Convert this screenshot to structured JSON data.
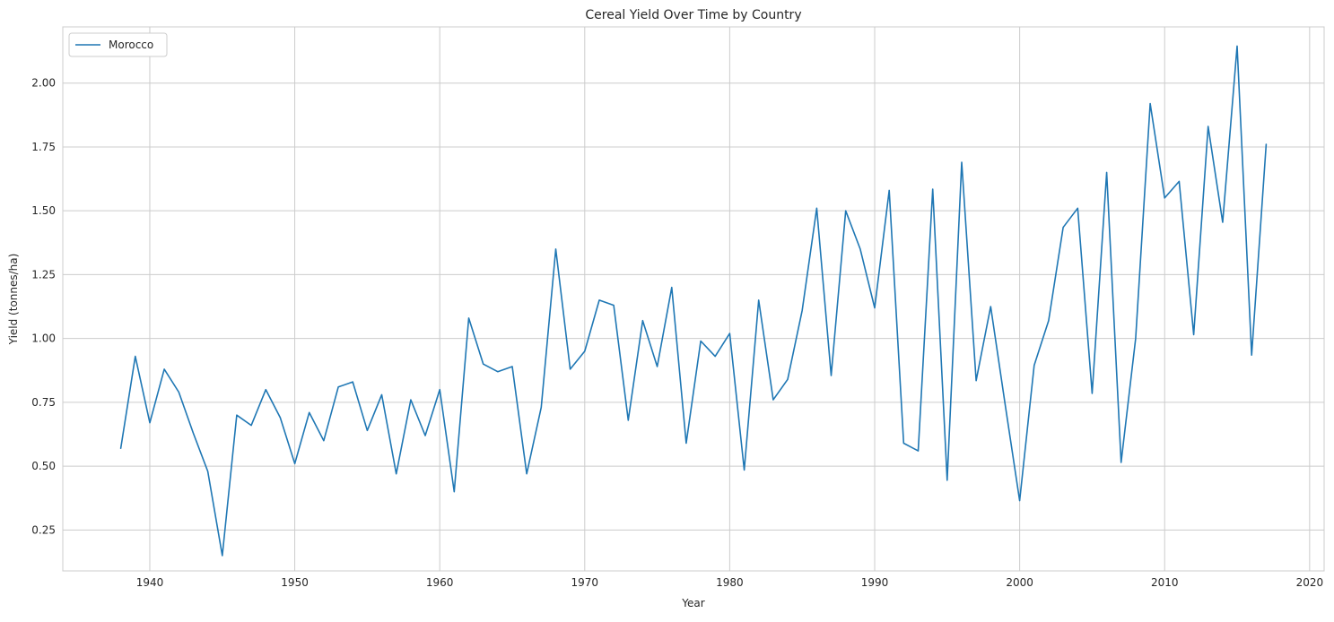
{
  "chart_data": {
    "type": "line",
    "title": "Cereal Yield Over Time by Country",
    "xlabel": "Year",
    "ylabel": "Yield (tonnes/ha)",
    "xlim": [
      1934,
      2021
    ],
    "ylim": [
      0.09,
      2.22
    ],
    "xticks": [
      1940,
      1950,
      1960,
      1970,
      1980,
      1990,
      2000,
      2010,
      2020
    ],
    "yticks": [
      0.25,
      0.5,
      0.75,
      1.0,
      1.25,
      1.5,
      1.75,
      2.0
    ],
    "ytick_labels": [
      "0.25",
      "0.50",
      "0.75",
      "1.00",
      "1.25",
      "1.50",
      "1.75",
      "2.00"
    ],
    "grid": true,
    "legend_position": "top-left",
    "series": [
      {
        "name": "Morocco",
        "color": "#1f77b4",
        "x": [
          1938,
          1939,
          1940,
          1941,
          1942,
          1943,
          1944,
          1945,
          1946,
          1947,
          1948,
          1949,
          1950,
          1951,
          1952,
          1953,
          1954,
          1955,
          1956,
          1957,
          1958,
          1959,
          1960,
          1961,
          1962,
          1963,
          1964,
          1965,
          1966,
          1967,
          1968,
          1969,
          1970,
          1971,
          1972,
          1973,
          1974,
          1975,
          1976,
          1977,
          1978,
          1979,
          1980,
          1981,
          1982,
          1983,
          1984,
          1985,
          1986,
          1987,
          1988,
          1989,
          1990,
          1991,
          1992,
          1993,
          1994,
          1995,
          1996,
          1997,
          1998,
          1999,
          2000,
          2001,
          2002,
          2003,
          2004,
          2005,
          2006,
          2007,
          2008,
          2009,
          2010,
          2011,
          2012,
          2013,
          2014,
          2015,
          2016,
          2017
        ],
        "values": [
          0.57,
          0.93,
          0.67,
          0.88,
          0.79,
          0.63,
          0.48,
          0.15,
          0.7,
          0.66,
          0.8,
          0.69,
          0.51,
          0.71,
          0.6,
          0.81,
          0.83,
          0.64,
          0.78,
          0.47,
          0.76,
          0.62,
          0.8,
          0.4,
          1.08,
          0.9,
          0.87,
          0.89,
          0.47,
          0.73,
          1.35,
          0.88,
          0.95,
          1.15,
          1.13,
          0.68,
          1.07,
          0.89,
          1.2,
          0.59,
          0.99,
          0.93,
          1.02,
          0.485,
          1.15,
          0.76,
          0.84,
          1.11,
          1.51,
          0.855,
          1.5,
          1.35,
          1.12,
          1.58,
          0.59,
          0.56,
          1.585,
          0.445,
          1.69,
          0.835,
          1.125,
          0.74,
          0.365,
          0.895,
          1.07,
          1.435,
          1.51,
          0.785,
          1.65,
          0.515,
          1.0,
          1.92,
          1.55,
          1.615,
          1.015,
          1.83,
          1.455,
          2.145,
          0.935,
          1.76
        ]
      }
    ]
  }
}
